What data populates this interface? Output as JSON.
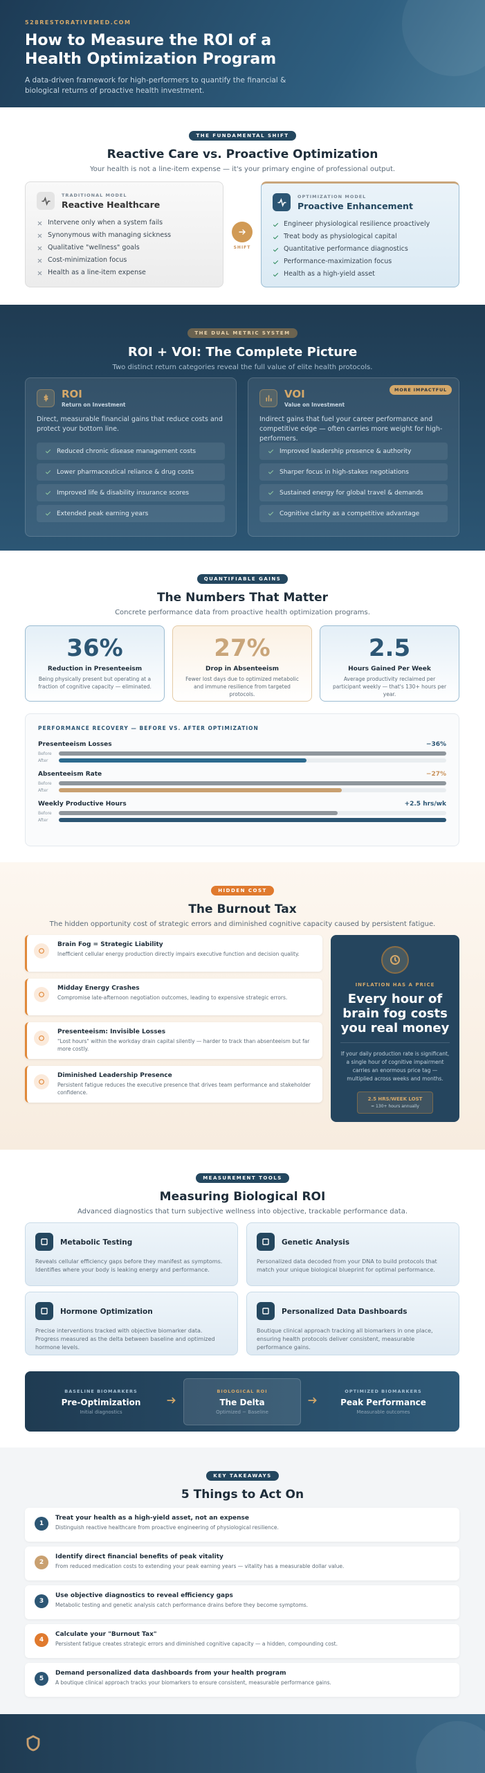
{
  "hero": {
    "site": "528RESTORATIVEMED.COM",
    "title": "How to Measure the ROI of a Health Optimization Program",
    "subtitle": "A data-driven framework for high-performers to quantify the financial & biological returns of proactive health investment."
  },
  "shift": {
    "badge": "THE FUNDAMENTAL SHIFT",
    "title": "Reactive Care vs. Proactive Optimization",
    "subtitle": "Your health is not a line-item expense — it's your primary engine of professional output.",
    "reactive": {
      "eyebrow": "TRADITIONAL MODEL",
      "title": "Reactive Healthcare",
      "items": [
        "Intervene only when a system fails",
        "Synonymous with managing sickness",
        "Qualitative \"wellness\" goals",
        "Cost-minimization focus",
        "Health as a line-item expense"
      ]
    },
    "arrow": "SHIFT",
    "proactive": {
      "eyebrow": "OPTIMIZATION MODEL",
      "title": "Proactive Enhancement",
      "items": [
        "Engineer physiological resilience proactively",
        "Treat body as physiological capital",
        "Quantitative performance diagnostics",
        "Performance-maximization focus",
        "Health as a high-yield asset"
      ]
    }
  },
  "metrics": {
    "badge": "THE DUAL METRIC SYSTEM",
    "title": "ROI + VOI: The Complete Picture",
    "subtitle": "Two distinct return categories reveal the full value of elite health protocols.",
    "cards": [
      {
        "abbr": "ROI",
        "name": "Return on Investment",
        "desc": "Direct, measurable financial gains that reduce costs and protect your bottom line.",
        "items": [
          "Reduced chronic disease management costs",
          "Lower pharmaceutical reliance & drug costs",
          "Improved life & disability insurance scores",
          "Extended peak earning years"
        ]
      },
      {
        "abbr": "VOI",
        "name": "Value on Investment",
        "tag": "MORE IMPACTFUL",
        "desc": "Indirect gains that fuel your career performance and competitive edge — often carries more weight for high-performers.",
        "items": [
          "Improved leadership presence & authority",
          "Sharper focus in high-stakes negotiations",
          "Sustained energy for global travel & demands",
          "Cognitive clarity as a competitive advantage"
        ]
      }
    ]
  },
  "numbers": {
    "badge": "QUANTIFIABLE GAINS",
    "title": "The Numbers That Matter",
    "subtitle": "Concrete performance data from proactive health optimization programs.",
    "stats": [
      {
        "value": "36%",
        "label": "Reduction in Presenteeism",
        "desc": "Being physically present but operating at a fraction of cognitive capacity — eliminated."
      },
      {
        "value": "27%",
        "label": "Drop in Absenteeism",
        "desc": "Fewer lost days due to optimized metabolic and immune resilience from targeted protocols."
      },
      {
        "value": "2.5",
        "label": "Hours Gained Per Week",
        "desc": "Average productivity reclaimed per participant weekly — that's 130+ hours per year."
      }
    ],
    "recovery": {
      "title": "PERFORMANCE RECOVERY — BEFORE VS. AFTER OPTIMIZATION",
      "before_label": "Before",
      "after_label": "After",
      "rows": [
        {
          "label": "Presenteeism Losses",
          "change": "−36%",
          "before": 100,
          "after": 64
        },
        {
          "label": "Absenteeism Rate",
          "change": "−27%",
          "before": 100,
          "after": 73
        },
        {
          "label": "Weekly Productive Hours",
          "change": "+2.5 hrs/wk",
          "before": 72,
          "after": 100
        }
      ]
    }
  },
  "burnout": {
    "badge": "HIDDEN COST",
    "title": "The Burnout Tax",
    "subtitle": "The hidden opportunity cost of strategic errors and diminished cognitive capacity caused by persistent fatigue.",
    "items": [
      {
        "title": "Brain Fog = Strategic Liability",
        "desc": "Inefficient cellular energy production directly impairs executive function and decision quality."
      },
      {
        "title": "Midday Energy Crashes",
        "desc": "Compromise late-afternoon negotiation outcomes, leading to expensive strategic errors."
      },
      {
        "title": "Presenteeism: Invisible Losses",
        "desc": "\"Lost hours\" within the workday drain capital silently — harder to track than absenteeism but far more costly."
      },
      {
        "title": "Diminished Leadership Presence",
        "desc": "Persistent fatigue reduces the executive presence that drives team performance and stakeholder confidence."
      }
    ],
    "callout": {
      "eyebrow": "INFLATION HAS A PRICE",
      "headline": "Every hour of brain fog costs you real money",
      "desc": "If your daily production rate is significant, a single hour of cognitive impairment carries an enormous price tag — multiplied across weeks and months.",
      "stat": "2.5 HRS/WEEK LOST",
      "stat_sub": "= 130+ hours annually"
    }
  },
  "tools": {
    "badge": "MEASUREMENT TOOLS",
    "title": "Measuring Biological ROI",
    "subtitle": "Advanced diagnostics that turn subjective wellness into objective, trackable performance data.",
    "cards": [
      {
        "title": "Metabolic Testing",
        "desc": "Reveals cellular efficiency gaps before they manifest as symptoms. Identifies where your body is leaking energy and performance."
      },
      {
        "title": "Genetic Analysis",
        "desc": "Personalized data decoded from your DNA to build protocols that match your unique biological blueprint for optimal performance."
      },
      {
        "title": "Hormone Optimization",
        "desc": "Precise interventions tracked with objective biomarker data. Progress measured as the delta between baseline and optimized hormone levels."
      },
      {
        "title": "Personalized Data Dashboards",
        "desc": "Boutique clinical approach tracking all biomarkers in one place, ensuring health protocols deliver consistent, measurable performance gains."
      }
    ],
    "flow": [
      {
        "eyebrow": "BASELINE BIOMARKERS",
        "title": "Pre-Optimization",
        "sub": "Initial diagnostics"
      },
      {
        "eyebrow": "BIOLOGICAL ROI",
        "title": "The Delta",
        "sub": "Optimized − Baseline"
      },
      {
        "eyebrow": "OPTIMIZED BIOMARKERS",
        "title": "Peak Performance",
        "sub": "Measurable outcomes"
      }
    ]
  },
  "takeaways": {
    "badge": "KEY TAKEAWAYS",
    "title": "5 Things to Act On",
    "items": [
      {
        "num": "1",
        "title": "Treat your health as a high-yield asset, not an expense",
        "desc": "Distinguish reactive healthcare from proactive engineering of physiological resilience."
      },
      {
        "num": "2",
        "title": "Identify direct financial benefits of peak vitality",
        "desc": "From reduced medication costs to extending your peak earning years — vitality has a measurable dollar value."
      },
      {
        "num": "3",
        "title": "Use objective diagnostics to reveal efficiency gaps",
        "desc": "Metabolic testing and genetic analysis catch performance drains before they become symptoms."
      },
      {
        "num": "4",
        "title": "Calculate your \"Burnout Tax\"",
        "desc": "Persistent fatigue creates strategic errors and diminished cognitive capacity — a hidden, compounding cost."
      },
      {
        "num": "5",
        "title": "Demand personalized data dashboards from your health program",
        "desc": "A boutique clinical approach tracks your biomarkers to ensure consistent, measurable performance gains."
      }
    ]
  }
}
